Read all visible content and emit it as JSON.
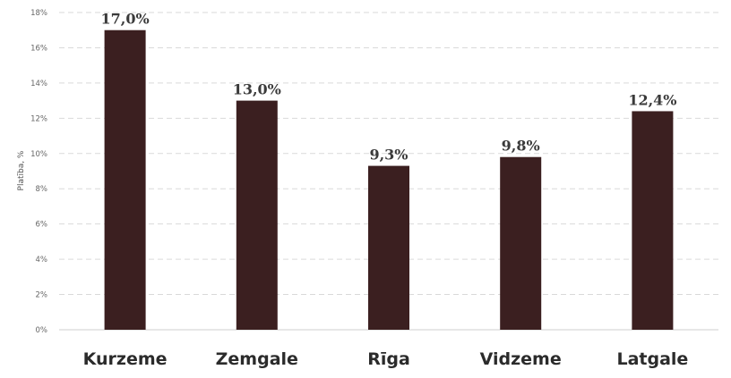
{
  "chart_data": {
    "type": "bar",
    "categories": [
      "Kurzeme",
      "Zemgale",
      "Rīga",
      "Vidzeme",
      "Latgale"
    ],
    "values": [
      17.0,
      13.0,
      9.3,
      9.8,
      12.4
    ],
    "data_labels": [
      "17,0%",
      "13,0%",
      "9,3%",
      "9,8%",
      "12,4%"
    ],
    "title": "",
    "xlabel": "",
    "ylabel": "Platība, %",
    "ylim": [
      0,
      18
    ],
    "yticks": [
      0,
      2,
      4,
      6,
      8,
      10,
      12,
      14,
      16,
      18
    ],
    "ytick_labels": [
      "0%",
      "2%",
      "4%",
      "6%",
      "8%",
      "10%",
      "12%",
      "14%",
      "16%",
      "18%"
    ],
    "grid": true,
    "legend": "none",
    "colors": {
      "bar": "#3b1f20"
    }
  }
}
